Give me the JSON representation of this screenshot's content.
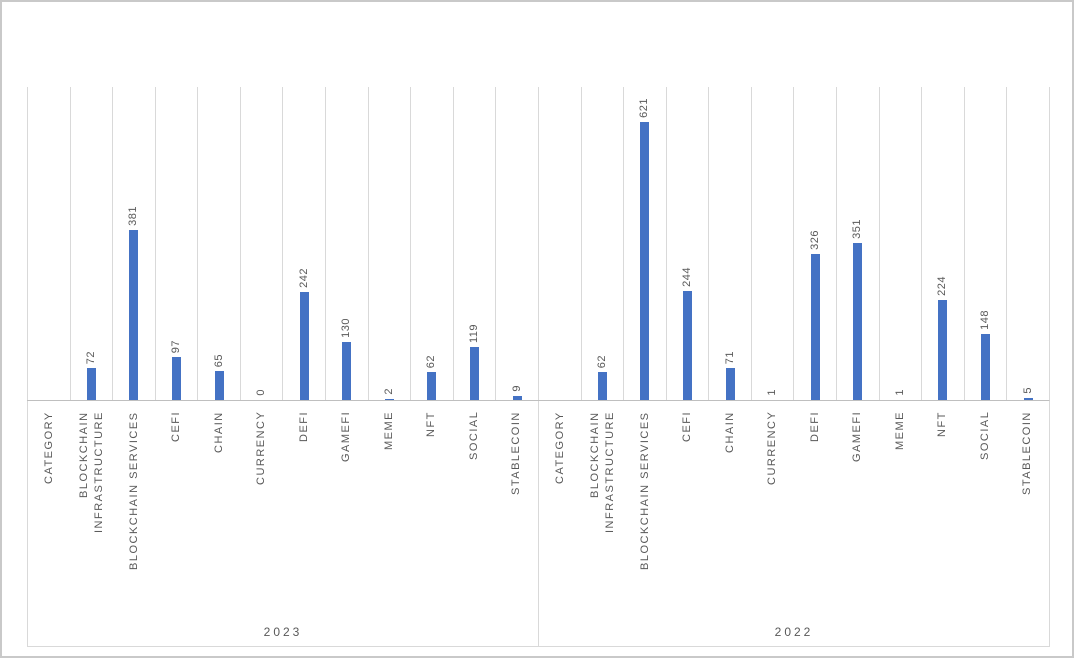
{
  "chart_data": {
    "type": "bar",
    "title": "",
    "xlabel": "",
    "ylabel": "",
    "ylim": [
      0,
      700
    ],
    "grid": true,
    "legend": "none",
    "bar_color": "#4472C4",
    "gridline_color": "#D9D9D9",
    "axis_line_color": "#BFBFBF",
    "label_color": "#595959",
    "categories": [
      [
        "CATEGORY"
      ],
      [
        "BLOCKCHAIN",
        "INFRASTRUCTURE"
      ],
      [
        "BLOCKCHAIN SERVICES"
      ],
      [
        "CEFI"
      ],
      [
        "CHAIN"
      ],
      [
        "CURRENCY"
      ],
      [
        "DEFI"
      ],
      [
        "GAMEFI"
      ],
      [
        "MEME"
      ],
      [
        "NFT"
      ],
      [
        "SOCIAL"
      ],
      [
        "STABLECOIN"
      ]
    ],
    "groups": [
      {
        "label": "2023",
        "values": [
          null,
          72,
          381,
          97,
          65,
          0,
          242,
          130,
          2,
          62,
          119,
          9
        ]
      },
      {
        "label": "2022",
        "values": [
          null,
          62,
          621,
          244,
          71,
          1,
          326,
          351,
          1,
          224,
          148,
          5
        ]
      }
    ]
  }
}
